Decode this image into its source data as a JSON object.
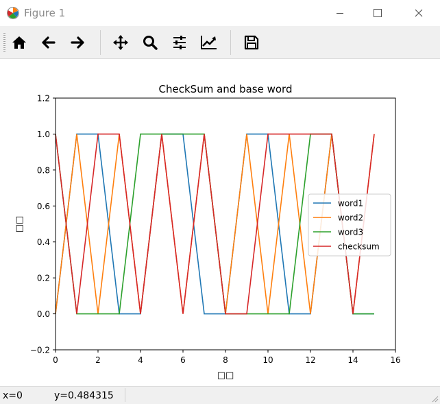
{
  "window": {
    "title": "Figure 1"
  },
  "toolbar": {
    "buttons": [
      {
        "name": "home",
        "icon": "home-icon"
      },
      {
        "name": "back",
        "icon": "arrow-left-icon"
      },
      {
        "name": "forward",
        "icon": "arrow-right-icon"
      },
      {
        "name": "pan",
        "icon": "move-icon"
      },
      {
        "name": "zoom",
        "icon": "zoom-icon"
      },
      {
        "name": "subplots",
        "icon": "sliders-icon"
      },
      {
        "name": "edit-axis",
        "icon": "chart-edit-icon"
      },
      {
        "name": "save",
        "icon": "save-icon"
      }
    ]
  },
  "status": {
    "x_readout": "x=0",
    "y_readout": "y=0.484315"
  },
  "chart_data": {
    "type": "line",
    "title": "CheckSum and base word",
    "xlabel": "□□",
    "ylabel": "□□",
    "xlim": [
      0,
      16
    ],
    "ylim": [
      -0.2,
      1.2
    ],
    "xticks": [
      0,
      2,
      4,
      6,
      8,
      10,
      12,
      14,
      16
    ],
    "xtick_labels": [
      "0",
      "2",
      "4",
      "6",
      "8",
      "10",
      "12",
      "14",
      "16"
    ],
    "yticks": [
      -0.2,
      0.0,
      0.2,
      0.4,
      0.6,
      0.8,
      1.0,
      1.2
    ],
    "ytick_labels": [
      "−0.2",
      "0.0",
      "0.2",
      "0.4",
      "0.6",
      "0.8",
      "1.0",
      "1.2"
    ],
    "grid": false,
    "legend_position": "center-right",
    "x": [
      0,
      1,
      2,
      3,
      4,
      5,
      6,
      7,
      8,
      9,
      10,
      11,
      12,
      13,
      14,
      15
    ],
    "series": [
      {
        "name": "word1",
        "color": "#1f77b4",
        "values": [
          0,
          1,
          1,
          0,
          0,
          1,
          1,
          0,
          0,
          1,
          1,
          0,
          0,
          1,
          0,
          0
        ]
      },
      {
        "name": "word2",
        "color": "#ff7f0e",
        "values": [
          0,
          1,
          0,
          1,
          0,
          1,
          0,
          1,
          0,
          1,
          0,
          1,
          0,
          1,
          0,
          1
        ]
      },
      {
        "name": "word3",
        "color": "#2ca02c",
        "values": [
          1,
          0,
          0,
          0,
          1,
          1,
          1,
          1,
          0,
          0,
          0,
          0,
          1,
          1,
          0,
          0
        ]
      },
      {
        "name": "checksum",
        "color": "#d62728",
        "values": [
          1,
          0,
          1,
          1,
          0,
          1,
          0,
          1,
          0,
          0,
          1,
          1,
          1,
          1,
          0,
          1
        ]
      }
    ]
  }
}
